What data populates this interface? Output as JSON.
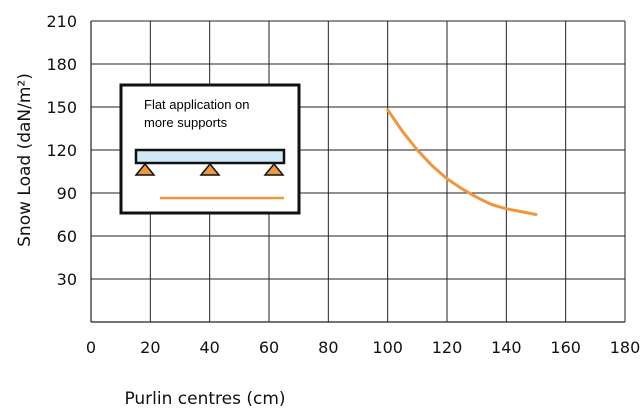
{
  "chart_data": {
    "type": "line",
    "title": "",
    "xlabel": "Purlin centres (cm)",
    "ylabel": "Snow Load  (daN/m²)",
    "xlim": [
      0,
      180
    ],
    "ylim": [
      0,
      210
    ],
    "x_ticks": [
      "0",
      "20",
      "40",
      "60",
      "80",
      "100",
      "120",
      "140",
      "160",
      "180"
    ],
    "y_ticks": [
      "30",
      "60",
      "90",
      "120",
      "150",
      "180",
      "210"
    ],
    "grid": true,
    "line_color": "#F0963C",
    "series": [
      {
        "x": [
          100,
          105,
          110,
          115,
          120,
          125,
          130,
          135,
          140,
          145,
          150
        ],
        "values": [
          148,
          133,
          120,
          109,
          100,
          93,
          87,
          82,
          79,
          77,
          75
        ]
      }
    ],
    "legend_box": {
      "text_lines": [
        "Flat application on",
        "more supports"
      ],
      "beam_color": "#CFE9F7",
      "support_color": "#F0963C"
    }
  }
}
